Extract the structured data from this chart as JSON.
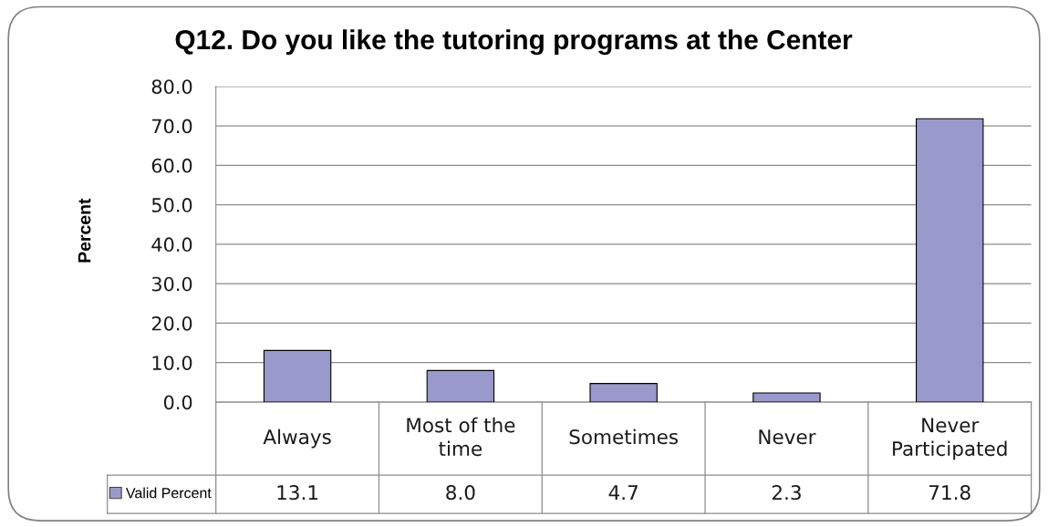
{
  "chart_data": {
    "type": "bar",
    "title": "Q12. Do you like the tutoring programs at the Center",
    "ylabel": "Percent",
    "categories": [
      "Always",
      "Most of the time",
      "Sometimes",
      "Never",
      "Never Participated"
    ],
    "series": [
      {
        "name": "Valid Percent",
        "color": "#9999cc",
        "values": [
          13.1,
          8.0,
          4.7,
          2.3,
          71.8
        ],
        "value_labels": [
          "13.1",
          "8.0",
          "4.7",
          "2.3",
          "71.8"
        ]
      }
    ],
    "ylim": [
      0,
      80
    ],
    "yticks": [
      {
        "value": 0,
        "label": "0.0"
      },
      {
        "value": 10,
        "label": "10.0"
      },
      {
        "value": 20,
        "label": "20.0"
      },
      {
        "value": 30,
        "label": "30.0"
      },
      {
        "value": 40,
        "label": "40.0"
      },
      {
        "value": 50,
        "label": "50.0"
      },
      {
        "value": 60,
        "label": "60.0"
      },
      {
        "value": 70,
        "label": "70.0"
      },
      {
        "value": 80,
        "label": "80.0"
      }
    ],
    "grid": "y",
    "legend": "bottom left"
  }
}
